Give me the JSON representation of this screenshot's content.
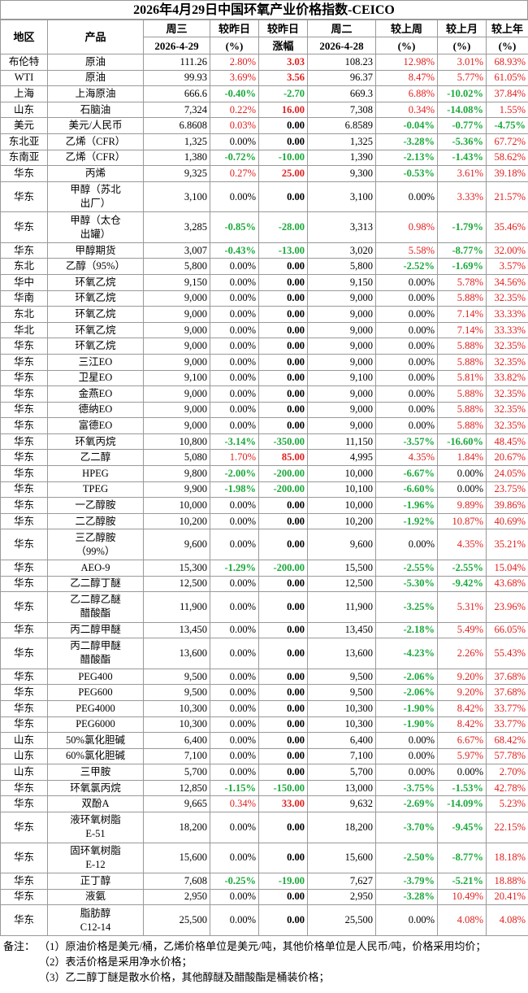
{
  "title": "2026年4月29日中国环氧产业价格指数-CEICO",
  "header": [
    [
      "地区",
      "产品",
      "周三",
      "较昨日",
      "较昨日",
      "周二",
      "较上周",
      "较上月",
      "较上年"
    ],
    [
      "2026-4-29",
      "(%)",
      "涨幅",
      "2026-4-28",
      "(%)",
      "(%)",
      "(%)"
    ]
  ],
  "table": {
    "rows": [
      [
        "布伦特",
        "原油",
        "111.26",
        "2.80%",
        "3.03",
        "108.23",
        "12.98%",
        "3.01%",
        "68.93%"
      ],
      [
        "WTI",
        "原油",
        "99.93",
        "3.69%",
        "3.56",
        "96.37",
        "8.47%",
        "5.77%",
        "61.05%"
      ],
      [
        "上海",
        "上海原油",
        "666.6",
        "-0.40%",
        "-2.70",
        "669.3",
        "6.88%",
        "-10.02%",
        "37.84%"
      ],
      [
        "山东",
        "石脑油",
        "7,324",
        "0.22%",
        "16.00",
        "7,308",
        "0.34%",
        "-14.08%",
        "1.55%"
      ],
      [
        "美元",
        "美元/人民币",
        "6.8608",
        "0.03%",
        "0.00",
        "6.8589",
        "-0.04%",
        "-0.77%",
        "-4.75%"
      ],
      [
        "东北亚",
        "乙烯（CFR）",
        "1,325",
        "0.00%",
        "0.00",
        "1,325",
        "-3.28%",
        "-5.36%",
        "67.72%"
      ],
      [
        "东南亚",
        "乙烯（CFR）",
        "1,380",
        "-0.72%",
        "-10.00",
        "1,390",
        "-2.13%",
        "-1.43%",
        "58.62%"
      ],
      [
        "华东",
        "丙烯",
        "9,325",
        "0.27%",
        "25.00",
        "9,300",
        "-0.53%",
        "3.61%",
        "39.18%"
      ],
      [
        "华东",
        "甲醇（苏北\n出厂）",
        "3,100",
        "0.00%",
        "0.00",
        "3,100",
        "0.00%",
        "3.33%",
        "21.57%"
      ],
      [
        "华东",
        "甲醇（太仓\n出罐）",
        "3,285",
        "-0.85%",
        "-28.00",
        "3,313",
        "0.98%",
        "-1.79%",
        "35.46%"
      ],
      [
        "华东",
        "甲醇期货",
        "3,007",
        "-0.43%",
        "-13.00",
        "3,020",
        "5.58%",
        "-8.77%",
        "32.00%"
      ],
      [
        "东北",
        "乙醇（95%）",
        "5,800",
        "0.00%",
        "0.00",
        "5,800",
        "-2.52%",
        "-1.69%",
        "3.57%"
      ],
      [
        "华中",
        "环氧乙烷",
        "9,150",
        "0.00%",
        "0.00",
        "9,150",
        "0.00%",
        "5.78%",
        "34.56%"
      ],
      [
        "华南",
        "环氧乙烷",
        "9,000",
        "0.00%",
        "0.00",
        "9,000",
        "0.00%",
        "5.88%",
        "32.35%"
      ],
      [
        "东北",
        "环氧乙烷",
        "9,000",
        "0.00%",
        "0.00",
        "9,000",
        "0.00%",
        "7.14%",
        "33.33%"
      ],
      [
        "华北",
        "环氧乙烷",
        "9,000",
        "0.00%",
        "0.00",
        "9,000",
        "0.00%",
        "7.14%",
        "33.33%"
      ],
      [
        "华东",
        "环氧乙烷",
        "9,000",
        "0.00%",
        "0.00",
        "9,000",
        "0.00%",
        "5.88%",
        "32.35%"
      ],
      [
        "华东",
        "三江EO",
        "9,000",
        "0.00%",
        "0.00",
        "9,000",
        "0.00%",
        "5.88%",
        "32.35%"
      ],
      [
        "华东",
        "卫星EO",
        "9,100",
        "0.00%",
        "0.00",
        "9,100",
        "0.00%",
        "5.81%",
        "33.82%"
      ],
      [
        "华东",
        "金燕EO",
        "9,000",
        "0.00%",
        "0.00",
        "9,000",
        "0.00%",
        "5.88%",
        "32.35%"
      ],
      [
        "华东",
        "德纳EO",
        "9,000",
        "0.00%",
        "0.00",
        "9,000",
        "0.00%",
        "5.88%",
        "32.35%"
      ],
      [
        "华东",
        "富德EO",
        "9,000",
        "0.00%",
        "0.00",
        "9,000",
        "0.00%",
        "5.88%",
        "32.35%"
      ],
      [
        "华东",
        "环氧丙烷",
        "10,800",
        "-3.14%",
        "-350.00",
        "11,150",
        "-3.57%",
        "-16.60%",
        "48.45%"
      ],
      [
        "华东",
        "乙二醇",
        "5,080",
        "1.70%",
        "85.00",
        "4,995",
        "4.35%",
        "1.84%",
        "20.67%"
      ],
      [
        "华东",
        "HPEG",
        "9,800",
        "-2.00%",
        "-200.00",
        "10,000",
        "-6.67%",
        "0.00%",
        "24.05%"
      ],
      [
        "华东",
        "TPEG",
        "9,900",
        "-1.98%",
        "-200.00",
        "10,100",
        "-6.60%",
        "0.00%",
        "23.75%"
      ],
      [
        "华东",
        "一乙醇胺",
        "10,000",
        "0.00%",
        "0.00",
        "10,000",
        "-1.96%",
        "9.89%",
        "39.86%"
      ],
      [
        "华东",
        "二乙醇胺",
        "10,200",
        "0.00%",
        "0.00",
        "10,200",
        "-1.92%",
        "10.87%",
        "40.69%"
      ],
      [
        "华东",
        "三乙醇胺\n（99%）",
        "9,600",
        "0.00%",
        "0.00",
        "9,600",
        "0.00%",
        "4.35%",
        "35.21%"
      ],
      [
        "华东",
        "AEO-9",
        "15,300",
        "-1.29%",
        "-200.00",
        "15,500",
        "-2.55%",
        "-2.55%",
        "15.04%"
      ],
      [
        "华东",
        "乙二醇丁醚",
        "12,500",
        "0.00%",
        "0.00",
        "12,500",
        "-5.30%",
        "-9.42%",
        "43.68%"
      ],
      [
        "华东",
        "乙二醇乙醚\n醋酸酯",
        "11,900",
        "0.00%",
        "0.00",
        "11,900",
        "-3.25%",
        "5.31%",
        "23.96%"
      ],
      [
        "华东",
        "丙二醇甲醚",
        "13,450",
        "0.00%",
        "0.00",
        "13,450",
        "-2.18%",
        "5.49%",
        "66.05%"
      ],
      [
        "华东",
        "丙二醇甲醚\n醋酸酯",
        "13,600",
        "0.00%",
        "0.00",
        "13,600",
        "-4.23%",
        "2.26%",
        "55.43%"
      ],
      [
        "华东",
        "PEG400",
        "9,500",
        "0.00%",
        "0.00",
        "9,500",
        "-2.06%",
        "9.20%",
        "37.68%"
      ],
      [
        "华东",
        "PEG600",
        "9,500",
        "0.00%",
        "0.00",
        "9,500",
        "-2.06%",
        "9.20%",
        "37.68%"
      ],
      [
        "华东",
        "PEG4000",
        "10,300",
        "0.00%",
        "0.00",
        "10,300",
        "-1.90%",
        "8.42%",
        "33.77%"
      ],
      [
        "华东",
        "PEG6000",
        "10,300",
        "0.00%",
        "0.00",
        "10,300",
        "-1.90%",
        "8.42%",
        "33.77%"
      ],
      [
        "山东",
        "50%氯化胆碱",
        "6,400",
        "0.00%",
        "0.00",
        "6,400",
        "0.00%",
        "6.67%",
        "68.42%"
      ],
      [
        "山东",
        "60%氯化胆碱",
        "7,100",
        "0.00%",
        "0.00",
        "7,100",
        "0.00%",
        "5.97%",
        "57.78%"
      ],
      [
        "山东",
        "三甲胺",
        "5,700",
        "0.00%",
        "0.00",
        "5,700",
        "0.00%",
        "0.00%",
        "2.70%"
      ],
      [
        "华东",
        "环氧氯丙烷",
        "12,850",
        "-1.15%",
        "-150.00",
        "13,000",
        "-3.75%",
        "-1.53%",
        "42.78%"
      ],
      [
        "华东",
        "双酚A",
        "9,665",
        "0.34%",
        "33.00",
        "9,632",
        "-2.69%",
        "-14.09%",
        "5.23%"
      ],
      [
        "华东",
        "液环氧树脂\nE-51",
        "18,200",
        "0.00%",
        "0.00",
        "18,200",
        "-3.70%",
        "-9.45%",
        "22.15%"
      ],
      [
        "华东",
        "固环氧树脂\nE-12",
        "15,600",
        "0.00%",
        "0.00",
        "15,600",
        "-2.50%",
        "-8.77%",
        "18.18%"
      ],
      [
        "华东",
        "正丁醇",
        "7,608",
        "-0.25%",
        "-19.00",
        "7,627",
        "-3.79%",
        "-5.21%",
        "18.88%"
      ],
      [
        "华东",
        "液氨",
        "2,950",
        "0.00%",
        "0.00",
        "2,950",
        "-3.28%",
        "10.49%",
        "20.41%"
      ],
      [
        "华东",
        "脂肪醇\nC12-14",
        "25,500",
        "0.00%",
        "0.00",
        "25,500",
        "0.00%",
        "4.08%",
        "4.08%"
      ]
    ]
  },
  "notes": [
    "备注：",
    "（1）原油价格是美元/桶，乙烯价格单位是美元/吨，其他价格单位是人民币/吨，价格采用均价；",
    "（2）表活价格是采用净水价格；",
    "（3）乙二醇丁醚是散水价格，其他醇醚及醋酸酯是桶装价格；"
  ]
}
